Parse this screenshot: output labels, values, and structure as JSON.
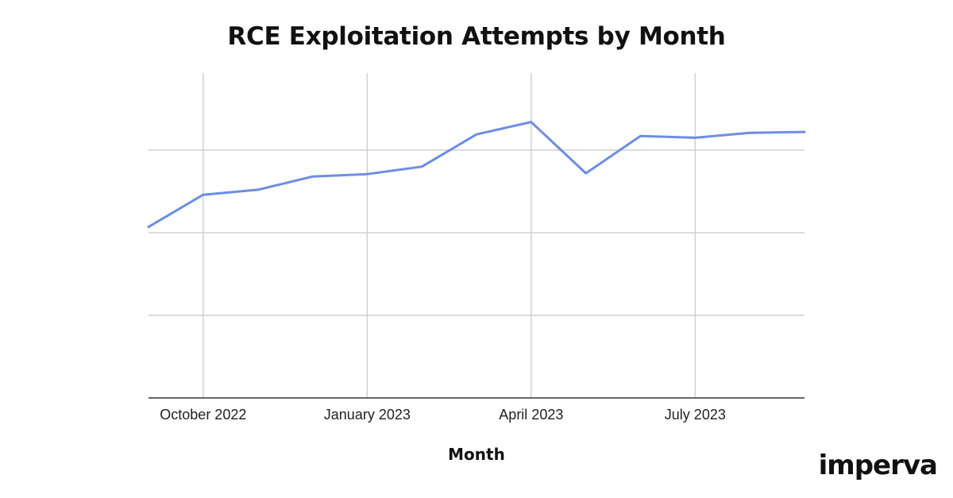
{
  "chart_data": {
    "type": "line",
    "title": "RCE Exploitation Attempts by Month",
    "xlabel": "Month",
    "ylabel": "",
    "x": [
      "2022-09",
      "2022-10",
      "2022-11",
      "2022-12",
      "2023-01",
      "2023-02",
      "2023-03",
      "2023-04",
      "2023-05",
      "2023-06",
      "2023-07",
      "2023-08",
      "2023-09"
    ],
    "x_tick_labels": [
      "October 2022",
      "January 2023",
      "April 2023",
      "July 2023"
    ],
    "series": [
      {
        "values": [
          2.07,
          2.46,
          2.52,
          2.68,
          2.71,
          2.8,
          3.19,
          3.34,
          2.72,
          3.17,
          3.15,
          3.21,
          3.22
        ],
        "color": "#6d8ee6"
      }
    ],
    "ylim": [
      0,
      4
    ],
    "y_tick_labels_shown": false,
    "grid": true,
    "legend": "none"
  },
  "brand": {
    "logo_text": "imperva"
  },
  "colors": {
    "line": "#6d8ee6",
    "grid": "#d0d0d0",
    "axis": "#333333",
    "text": "#111111"
  }
}
